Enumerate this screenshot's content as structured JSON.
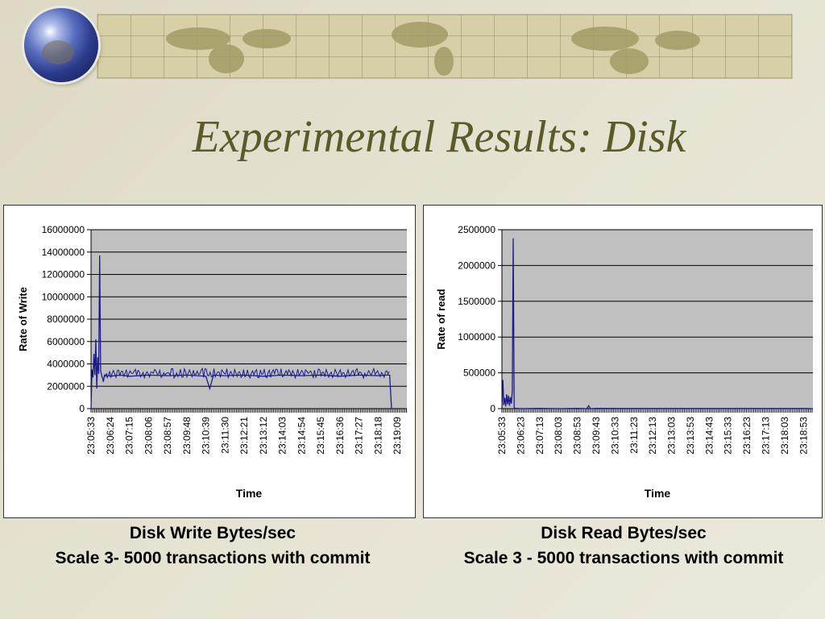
{
  "slide": {
    "title": "Experimental Results: Disk"
  },
  "banner": {
    "icon": "world-map-icon",
    "logo": "globe-icon"
  },
  "captions": {
    "write": {
      "line1": "Disk Write Bytes/sec",
      "line2": "Scale 3- 5000 transactions with commit"
    },
    "read": {
      "line1": "Disk Read Bytes/sec",
      "line2": "Scale 3 - 5000 transactions with commit"
    }
  },
  "colors": {
    "series": "#1a1a8c",
    "plot_bg": "#c0c0c0",
    "title": "#5b5a28"
  },
  "chart_data": [
    {
      "type": "line",
      "xlabel": "Time",
      "ylabel": "Rate of Write",
      "ylim": [
        0,
        16000000
      ],
      "yticks": [
        0,
        2000000,
        4000000,
        6000000,
        8000000,
        10000000,
        12000000,
        14000000,
        16000000
      ],
      "grid": true,
      "legend": "none",
      "categories": [
        "23:05:33",
        "23:06:24",
        "23:07:15",
        "23:08:06",
        "23:08:57",
        "23:09:48",
        "23:10:39",
        "23:11:30",
        "23:12:21",
        "23:13:12",
        "23:14:03",
        "23:14:54",
        "23:15:45",
        "23:16:36",
        "23:17:27",
        "23:18:18",
        "23:19:09"
      ],
      "series": [
        {
          "x": [
            0,
            0.05,
            0.1,
            0.15,
            0.2,
            0.25,
            0.3,
            0.35,
            0.4,
            0.45,
            0.5,
            0.55,
            0.6,
            0.65,
            0.7,
            0.75,
            0.8,
            0.85,
            0.9,
            1.0,
            1.5,
            2.0,
            3.0,
            4.0,
            5.0,
            6.0,
            6.2,
            6.4,
            7.0,
            8.0,
            9.0,
            10.0,
            11.0,
            12.0,
            13.0,
            14.0,
            15.0,
            15.4,
            15.6,
            15.65,
            15.7
          ],
          "values": [
            0,
            3500000,
            2800000,
            4900000,
            3000000,
            6200000,
            1800000,
            4600000,
            3100000,
            13700000,
            3400000,
            3000000,
            2700000,
            2400000,
            3000000,
            2900000,
            3100000,
            2800000,
            3000000,
            2900000,
            3000000,
            2900000,
            3000000,
            2950000,
            3000000,
            2900000,
            1800000,
            3000000,
            2950000,
            3000000,
            2900000,
            3000000,
            2950000,
            3000000,
            2900000,
            3000000,
            2950000,
            3000000,
            3000000,
            1500000,
            0
          ]
        }
      ]
    },
    {
      "type": "line",
      "xlabel": "Time",
      "ylabel": "Rate of read",
      "ylim": [
        0,
        2500000
      ],
      "yticks": [
        0,
        500000,
        1000000,
        1500000,
        2000000,
        2500000
      ],
      "grid": true,
      "legend": "none",
      "categories": [
        "23:05:33",
        "23:06:23",
        "23:07:13",
        "23:08:03",
        "23:08:53",
        "23:09:43",
        "23:10:33",
        "23:11:23",
        "23:12:13",
        "23:13:03",
        "23:13:53",
        "23:14:43",
        "23:15:33",
        "23:16:23",
        "23:17:13",
        "23:18:03",
        "23:18:53"
      ],
      "series": [
        {
          "x": [
            0,
            0.05,
            0.1,
            0.15,
            0.2,
            0.25,
            0.3,
            0.35,
            0.4,
            0.45,
            0.5,
            0.55,
            0.6,
            0.65,
            0.7,
            0.75,
            0.8,
            1.0,
            2.0,
            3.0,
            4.0,
            4.5,
            4.6,
            4.7,
            5.0,
            8.0,
            12.0,
            16.0,
            16.5
          ],
          "values": [
            0,
            400000,
            50000,
            150000,
            30000,
            200000,
            60000,
            180000,
            40000,
            160000,
            70000,
            250000,
            2380000,
            20000,
            5000,
            0,
            5000,
            0,
            5000,
            0,
            5000,
            0,
            40000,
            0,
            3000,
            2000,
            2000,
            2000,
            0
          ]
        }
      ]
    }
  ]
}
